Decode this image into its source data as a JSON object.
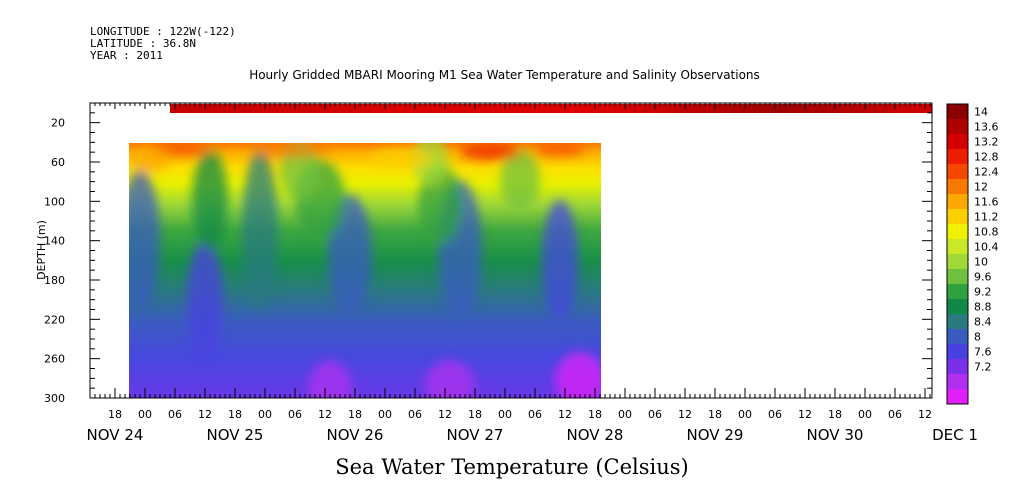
{
  "header": {
    "longitude": "LONGITUDE : 122W(-122)",
    "latitude": "LATITUDE : 36.8N",
    "year": "YEAR : 2011",
    "title": "Hourly Gridded MBARI Mooring M1 Sea Water Temperature and Salinity Observations"
  },
  "chart_data": {
    "type": "heatmap",
    "title": "Hourly Gridded MBARI Mooring M1 Sea Water Temperature and Salinity Observations",
    "xlabel": "Sea Water Temperature (Celsius)",
    "ylabel": "DEPTH (m)",
    "y_axis": {
      "range": [
        0,
        300
      ],
      "inverted": true,
      "tick_labels": [
        "20",
        "60",
        "100",
        "140",
        "180",
        "220",
        "260",
        "300"
      ]
    },
    "x_axis": {
      "hour_tick_labels": [
        "18",
        "00",
        "06",
        "12",
        "18",
        "00",
        "06",
        "12",
        "18",
        "00",
        "06",
        "12",
        "18",
        "00",
        "06",
        "12",
        "18",
        "00",
        "06",
        "12",
        "18",
        "00",
        "06",
        "12",
        "18",
        "00",
        "06",
        "12"
      ],
      "day_labels": [
        "NOV 24",
        "NOV 25",
        "NOV 26",
        "NOV 27",
        "NOV 28",
        "NOV 29",
        "NOV 30",
        "DEC  1"
      ]
    },
    "colorbar": {
      "levels": [
        "14",
        "13.6",
        "13.2",
        "12.8",
        "12.4",
        "12",
        "11.6",
        "11.2",
        "10.8",
        "10.4",
        "10",
        "9.6",
        "9.2",
        "8.8",
        "8.4",
        "8",
        "7.6",
        "7.2"
      ],
      "colors": [
        "#8b0000",
        "#b00000",
        "#d40000",
        "#ee1c00",
        "#f44800",
        "#f87800",
        "#fca800",
        "#fcd000",
        "#f0f000",
        "#c8e828",
        "#a0d838",
        "#70c040",
        "#30a040",
        "#108848",
        "#2a7a80",
        "#3a5cc0",
        "#4a40e0",
        "#7a30e8",
        "#b030f0",
        "#e020f8"
      ]
    },
    "data_extent": {
      "time_start": "NOV 24 16:00",
      "time_end": "NOV 28 18:00",
      "depth_top": 40,
      "depth_bottom": 300
    },
    "surface_band": {
      "time_start": "NOV 25 00:00",
      "time_end": "DEC 1 12:00",
      "depth": 10
    }
  }
}
